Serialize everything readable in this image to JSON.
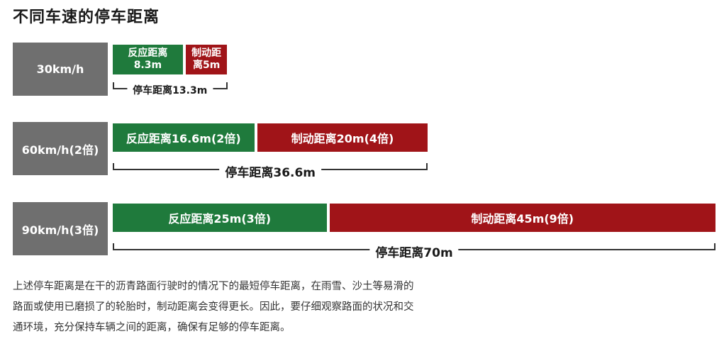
{
  "title": "不同车速的停车距离",
  "chart_data": {
    "type": "bar",
    "orientation": "horizontal",
    "stacked": true,
    "xlim": [
      0,
      70
    ],
    "unit": "m",
    "colors": {
      "reaction": "#1f7a3c",
      "braking": "#a01418",
      "speed_box": "#6f6f6f"
    },
    "rows": [
      {
        "speed_label": "30km/h",
        "reaction": 8.3,
        "braking": 5,
        "total": 13.3,
        "reaction_label": [
          "反应距离",
          "8.3m"
        ],
        "braking_label": [
          "制动距",
          "离5m"
        ],
        "total_label": "停车距离13.3m"
      },
      {
        "speed_label": "60km/h(2倍)",
        "reaction": 16.6,
        "braking": 20,
        "total": 36.6,
        "reaction_label": [
          "反应距离16.6m(2倍)"
        ],
        "braking_label": [
          "制动距离20m(4倍)"
        ],
        "total_label": "停车距离36.6m"
      },
      {
        "speed_label": "90km/h(3倍)",
        "reaction": 25,
        "braking": 45,
        "total": 70,
        "reaction_label": [
          "反应距离25m(3倍)"
        ],
        "braking_label": [
          "制动距离45m(9倍)"
        ],
        "total_label": "停车距离70m"
      }
    ]
  },
  "note": {
    "lines": [
      "上述停车距离是在干的沥青路面行驶时的情况下的最短停车距离，在雨雪、沙土等易滑的",
      "路面或使用已磨损了的轮胎时，制动距离会变得更长。因此，要仔细观察路面的状况和交",
      "通环境，充分保持车辆之间的距离，确保有足够的停车距离。"
    ]
  }
}
